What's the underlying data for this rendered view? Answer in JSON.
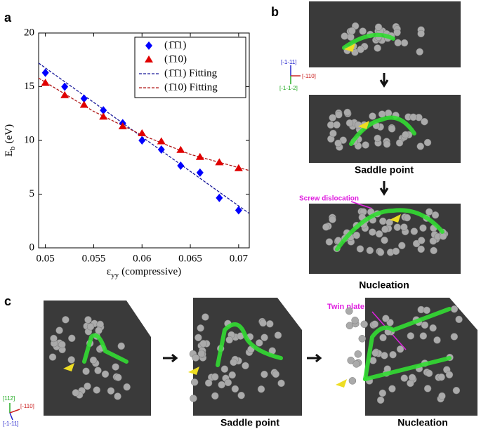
{
  "chart_data": {
    "type": "scatter",
    "xlabel": {
      "main": "ε",
      "sub": "yy",
      "unit": "(compressive)"
    },
    "ylabel": {
      "main": "E",
      "sub": "b",
      "unit": "(eV)"
    },
    "xlim": [
      0.0493,
      0.0711
    ],
    "ylim": [
      0,
      20
    ],
    "xticks": [
      0.05,
      0.055,
      0.06,
      0.065,
      0.07
    ],
    "yticks": [
      0,
      5,
      10,
      15,
      20
    ],
    "legend": "upper right",
    "series": [
      {
        "name": "(1̄1̄1)",
        "color": "#0000ff",
        "marker": "diamond",
        "x": [
          0.05,
          0.052,
          0.054,
          0.056,
          0.058,
          0.06,
          0.062,
          0.064,
          0.066,
          0.068,
          0.07
        ],
        "values": [
          16.3,
          15.0,
          13.9,
          12.8,
          11.6,
          10.0,
          9.15,
          7.65,
          7.0,
          4.65,
          3.5
        ]
      },
      {
        "name": "(1̄10)",
        "color": "#e00000",
        "marker": "triangle",
        "x": [
          0.05,
          0.052,
          0.054,
          0.056,
          0.058,
          0.06,
          0.062,
          0.064,
          0.066,
          0.068,
          0.07
        ],
        "values": [
          15.35,
          14.2,
          13.3,
          12.2,
          11.3,
          10.65,
          9.9,
          9.1,
          8.45,
          7.95,
          7.4
        ]
      },
      {
        "name": "(1̄1̄1) Fitting",
        "color": "#1a1a9a",
        "line_style": "dashed",
        "x": [
          0.0493,
          0.055,
          0.06,
          0.065,
          0.0711
        ],
        "values": [
          17.2,
          13.54,
          10.33,
          7.12,
          3.2
        ]
      },
      {
        "name": "(1̄10) Fitting",
        "color": "#b01818",
        "line_style": "dashed",
        "x": [
          0.0493,
          0.055,
          0.06,
          0.065,
          0.0711
        ],
        "values": [
          15.8,
          12.7,
          10.5,
          8.7,
          7.2
        ]
      }
    ]
  },
  "figure": {
    "panel_labels": [
      "a",
      "b",
      "c"
    ],
    "b": {
      "axes": [
        "[-1-11]",
        "[-110]",
        "[-1-1-2]"
      ],
      "captions": [
        "Saddle point",
        "Nucleation"
      ],
      "annotation": "Screw dislocation"
    },
    "c": {
      "axes": [
        "[112]",
        "[-110]",
        "[-1-11]"
      ],
      "captions": [
        "Saddle point",
        "Nucleation"
      ],
      "annotation": "Twin plate"
    }
  }
}
